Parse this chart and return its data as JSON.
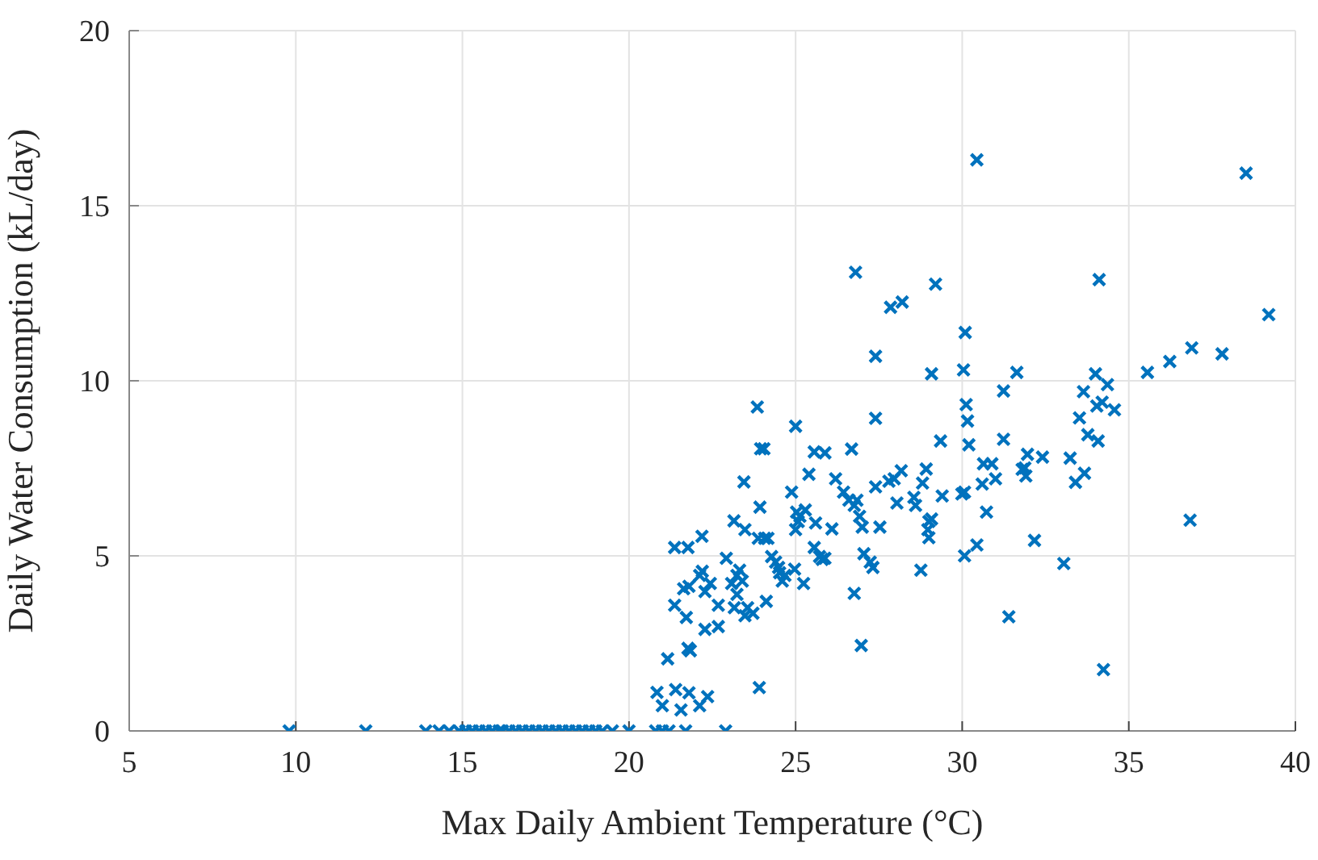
{
  "chart_data": {
    "type": "scatter",
    "xlabel": "Max Daily Ambient Temperature (°C)",
    "ylabel": "Daily Water Consumption (kL/day)",
    "xlim": [
      5,
      40
    ],
    "xticks": [
      5,
      10,
      15,
      20,
      25,
      30,
      35,
      40
    ],
    "ylim": [
      0,
      20
    ],
    "yticks": [
      0,
      5,
      10,
      15,
      20
    ],
    "grid": true,
    "marker": "cross",
    "legend": false,
    "series": [
      {
        "color": "#0072bd",
        "x": [
          9.8,
          12.1,
          13.9,
          14.3,
          14.6,
          14.9,
          15.1,
          15.3,
          15.5,
          15.7,
          15.9,
          16.1,
          16.2,
          16.4,
          16.6,
          16.8,
          17.0,
          17.2,
          17.4,
          17.6,
          17.8,
          18.0,
          18.2,
          18.4,
          18.6,
          18.8,
          19.0,
          19.2,
          19.5,
          20.0,
          20.8,
          21.0,
          21.2,
          21.7,
          22.9,
          23.85,
          23.95,
          24.05,
          25.0,
          23.45,
          23.93,
          23.15,
          23.48,
          22.19,
          21.37,
          21.77,
          23.88,
          24.07,
          24.17,
          22.92,
          24.28,
          24.4,
          24.49,
          24.52,
          24.6,
          24.68,
          24.97,
          25.24,
          23.24,
          23.32,
          23.4,
          23.08,
          22.2,
          22.12,
          22.44,
          22.28,
          22.68,
          21.64,
          21.8,
          21.37,
          21.72,
          23.24,
          23.16,
          23.56,
          23.48,
          23.72,
          24.12,
          22.28,
          22.68,
          21.77,
          21.84,
          21.16,
          23.91,
          20.84,
          21.4,
          21.8,
          22.36,
          21.0,
          21.56,
          22.12,
          25.4,
          24.88,
          25.03,
          25.13,
          25.29,
          25.0,
          25.08,
          25.6,
          25.56,
          25.88,
          26.2,
          26.68,
          26.44,
          26.6,
          26.76,
          26.84,
          26.92,
          27.0,
          26.09,
          25.56,
          25.72,
          25.8,
          25.88,
          27.05,
          27.32,
          27.24,
          26.76,
          26.97,
          27.4,
          27.4,
          27.53,
          27.4,
          27.8,
          27.96,
          28.17,
          28.04,
          28.76,
          28.55,
          28.6,
          28.92,
          28.81,
          29.0,
          29.08,
          28.97,
          29.0,
          29.08,
          29.35,
          29.4,
          30.44,
          38.52,
          34.11,
          39.2,
          30.09,
          30.04,
          31.64,
          35.56,
          36.23,
          36.89,
          37.8,
          34.0,
          34.36,
          33.64,
          31.24,
          30.12,
          30.16,
          34.04,
          34.2,
          34.57,
          33.52,
          33.77,
          34.08,
          30.2,
          31.24,
          30.64,
          30.89,
          31.96,
          31.88,
          31.91,
          31.8,
          32.41,
          33.24,
          33.67,
          33.4,
          31.0,
          30.6,
          29.99,
          30.07,
          30.73,
          36.84,
          30.44,
          30.07,
          32.17,
          33.05,
          31.4,
          34.24,
          26.8,
          27.85,
          28.2,
          29.2
        ],
        "values": [
          0,
          0,
          0,
          0,
          0,
          0,
          0,
          0,
          0,
          0,
          0,
          0,
          0,
          0,
          0,
          0,
          0,
          0,
          0,
          0,
          0,
          0,
          0,
          0,
          0,
          0,
          0,
          0,
          0,
          0,
          0,
          0,
          0,
          0,
          0,
          9.25,
          8.06,
          8.06,
          8.7,
          7.11,
          6.39,
          6.0,
          5.75,
          5.56,
          5.24,
          5.24,
          5.5,
          5.5,
          5.5,
          4.93,
          4.98,
          4.82,
          4.67,
          4.52,
          4.28,
          4.44,
          4.62,
          4.21,
          4.44,
          4.59,
          4.28,
          4.21,
          4.56,
          4.44,
          4.21,
          3.98,
          3.59,
          4.06,
          4.13,
          3.59,
          3.24,
          3.9,
          3.52,
          3.52,
          3.29,
          3.36,
          3.7,
          2.9,
          2.98,
          2.36,
          2.29,
          2.06,
          1.24,
          1.1,
          1.18,
          1.09,
          0.98,
          0.72,
          0.6,
          0.72,
          7.33,
          6.82,
          6.25,
          6.13,
          6.31,
          5.75,
          5.98,
          5.94,
          7.97,
          7.94,
          7.2,
          8.05,
          6.82,
          6.59,
          6.44,
          6.59,
          6.13,
          5.82,
          5.77,
          5.24,
          4.98,
          4.9,
          4.93,
          5.06,
          4.67,
          4.82,
          3.93,
          2.44,
          8.93,
          10.7,
          5.82,
          6.97,
          7.13,
          7.2,
          7.43,
          6.51,
          4.59,
          6.67,
          6.44,
          7.48,
          7.08,
          5.98,
          6.05,
          5.75,
          5.52,
          10.2,
          8.28,
          6.71,
          16.31,
          15.93,
          12.89,
          11.89,
          11.38,
          10.31,
          10.24,
          10.24,
          10.55,
          10.94,
          10.77,
          10.2,
          9.89,
          9.69,
          9.71,
          9.32,
          8.85,
          9.28,
          9.39,
          9.17,
          8.94,
          8.46,
          8.28,
          8.17,
          8.33,
          7.63,
          7.63,
          7.9,
          7.51,
          7.28,
          7.47,
          7.82,
          7.79,
          7.36,
          7.1,
          7.2,
          7.05,
          6.77,
          6.82,
          6.25,
          6.02,
          5.31,
          5.0,
          5.44,
          4.78,
          3.26,
          1.75,
          13.1,
          12.1,
          12.25,
          12.76
        ]
      }
    ]
  }
}
